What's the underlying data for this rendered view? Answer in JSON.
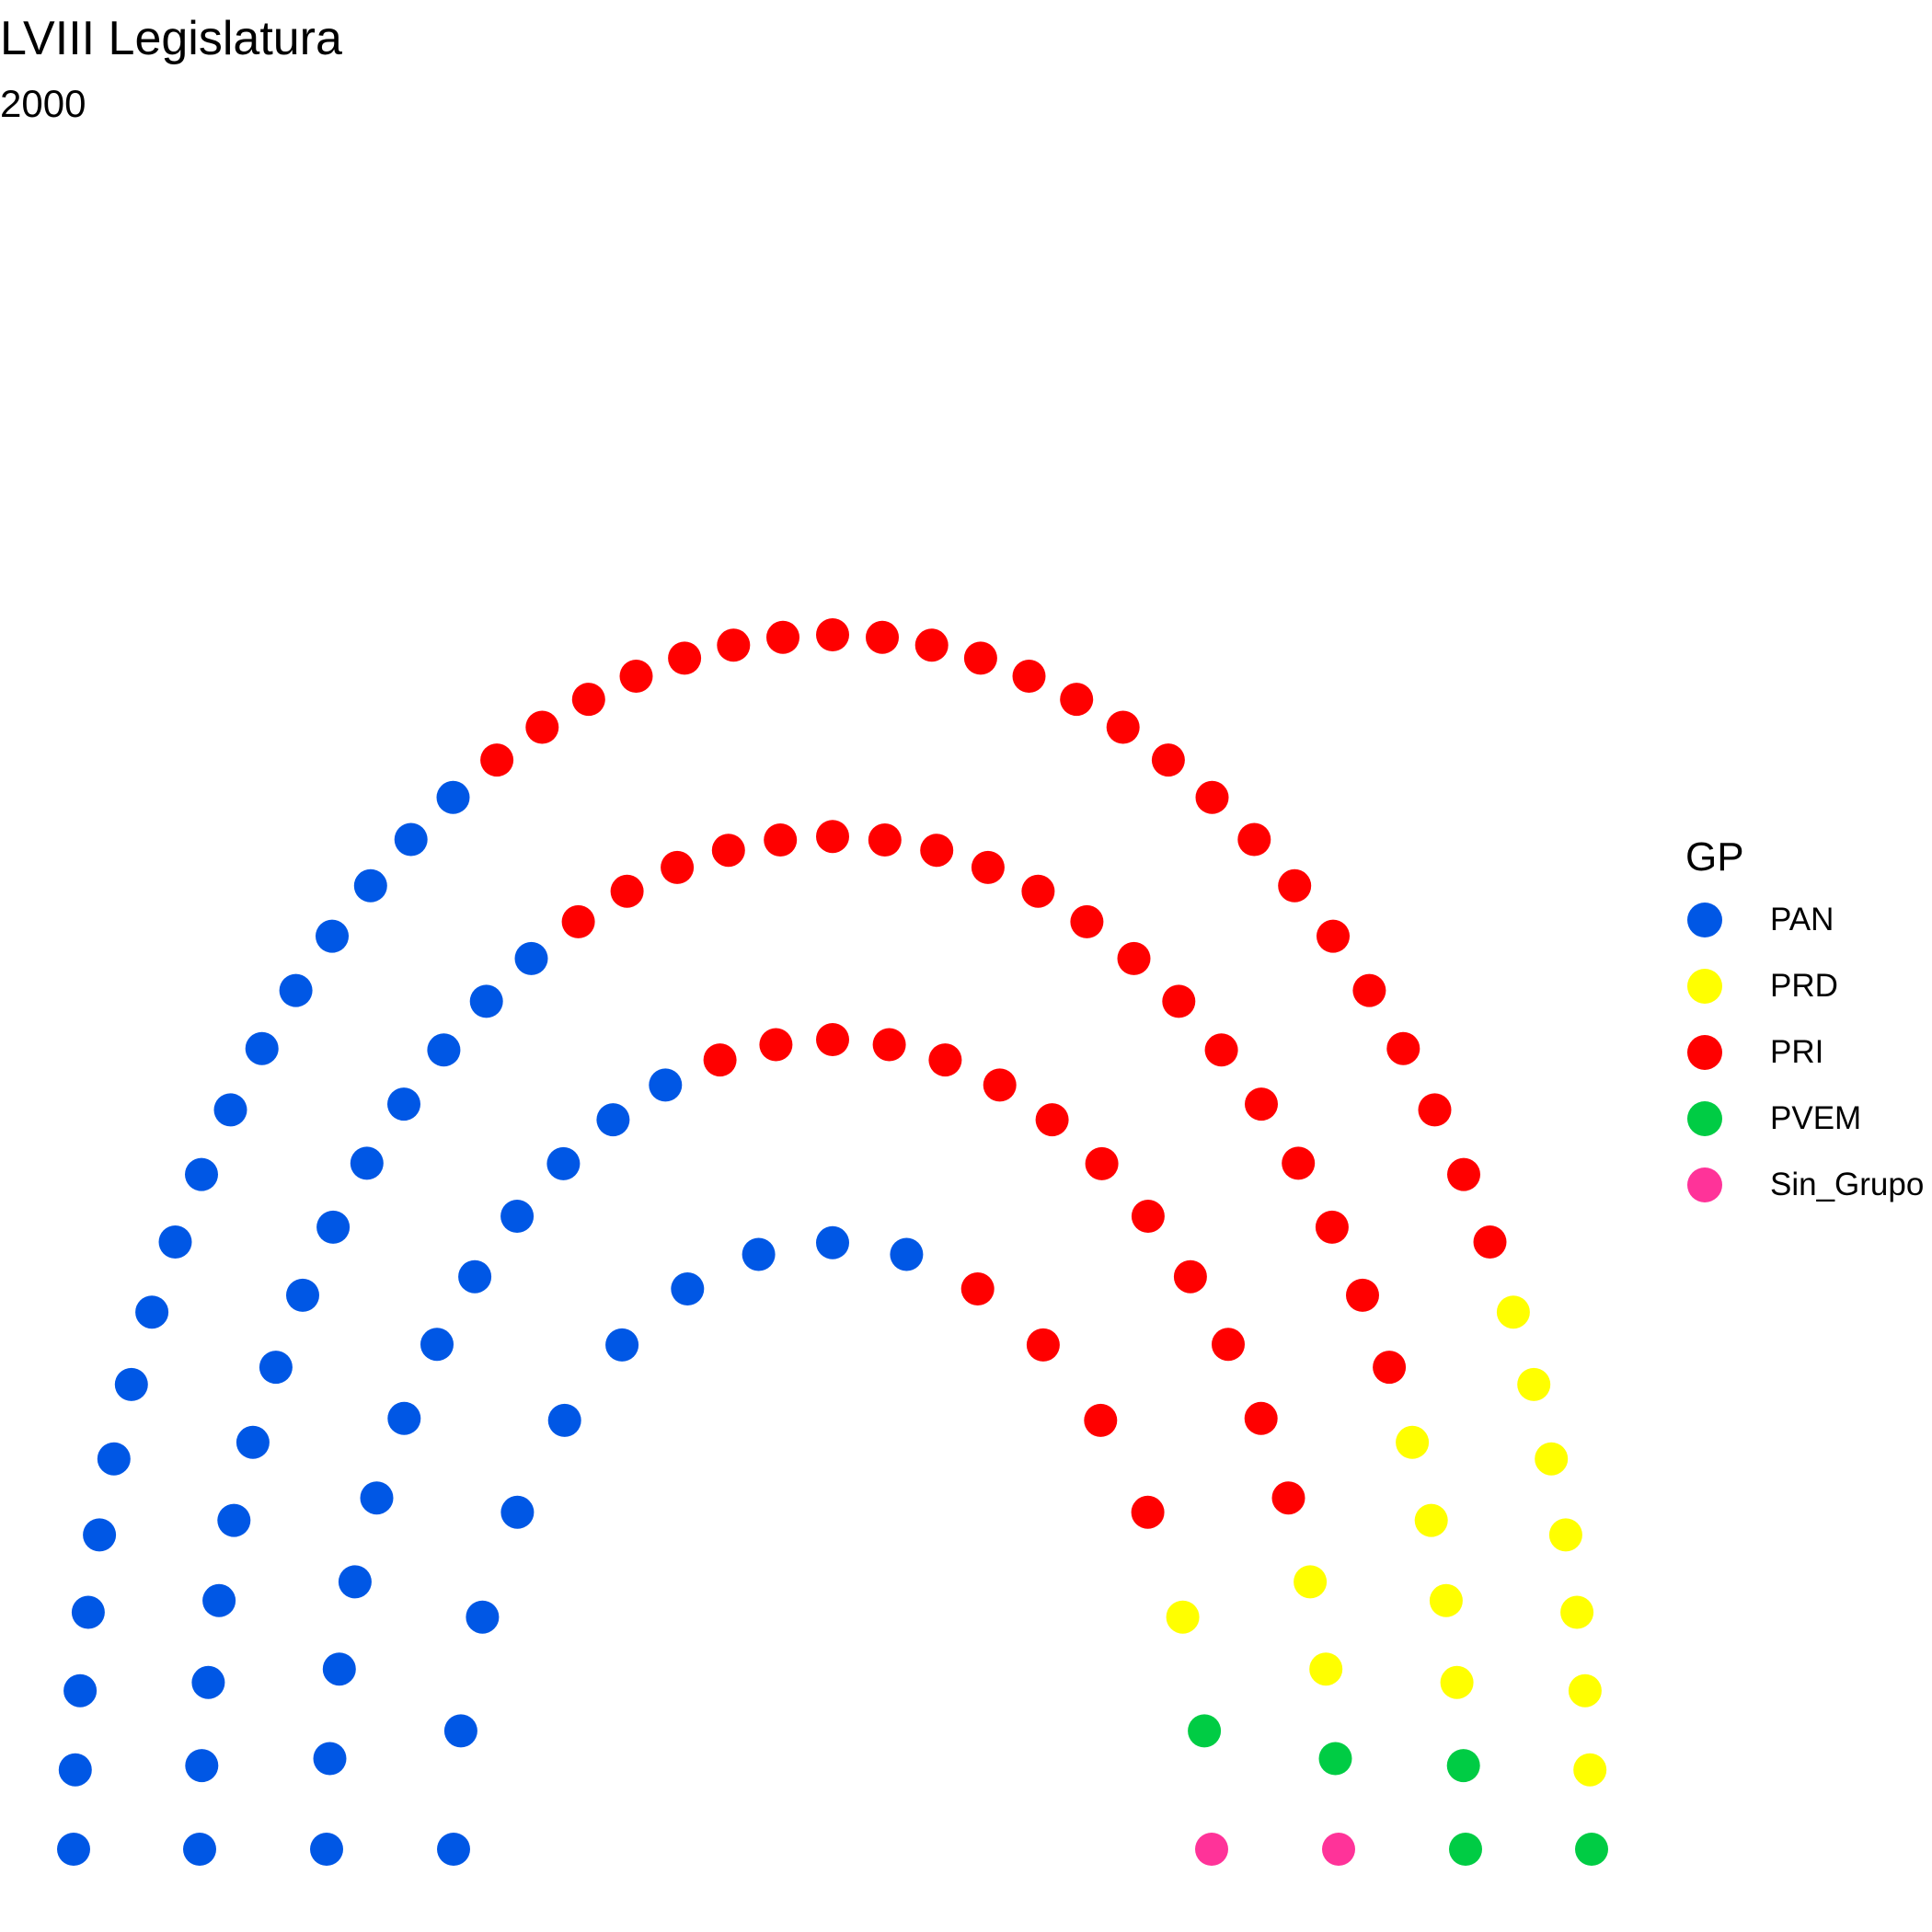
{
  "header": {
    "title": "LVIII Legislatura",
    "subtitle": "2000"
  },
  "chart_data": {
    "type": "parliament",
    "title": "LVIII Legislatura",
    "subtitle": "2000",
    "legend_title": "GP",
    "legend_position": "right",
    "grid": false,
    "rows": 4,
    "parties": [
      {
        "name": "PAN",
        "seats": 53,
        "color": "#0057E5"
      },
      {
        "name": "PRD",
        "seats": 14,
        "color": "#FFFF00"
      },
      {
        "name": "PRI",
        "seats": 60,
        "color": "#FF0000"
      },
      {
        "name": "PVEM",
        "seats": 5,
        "color": "#00CC44"
      },
      {
        "name": "Sin_Grupo",
        "seats": 2,
        "color": "#FF3399"
      }
    ],
    "seats_by_row": [
      [
        {
          "party": "PAN",
          "seats": 17
        },
        {
          "party": "PRI",
          "seats": 24
        },
        {
          "party": "PRD",
          "seats": 7
        },
        {
          "party": "PVEM",
          "seats": 1
        }
      ],
      [
        {
          "party": "PAN",
          "seats": 14
        },
        {
          "party": "PRI",
          "seats": 19
        },
        {
          "party": "PRD",
          "seats": 4
        },
        {
          "party": "PVEM",
          "seats": 2
        }
      ],
      [
        {
          "party": "PAN",
          "seats": 12
        },
        {
          "party": "PRI",
          "seats": 13
        },
        {
          "party": "PRD",
          "seats": 2
        },
        {
          "party": "PVEM",
          "seats": 1
        },
        {
          "party": "Sin_Grupo",
          "seats": 1
        }
      ],
      [
        {
          "party": "PAN",
          "seats": 10
        },
        {
          "party": "PRI",
          "seats": 4
        },
        {
          "party": "PRD",
          "seats": 1
        },
        {
          "party": "PVEM",
          "seats": 1
        },
        {
          "party": "Sin_Grupo",
          "seats": 1
        }
      ]
    ]
  }
}
